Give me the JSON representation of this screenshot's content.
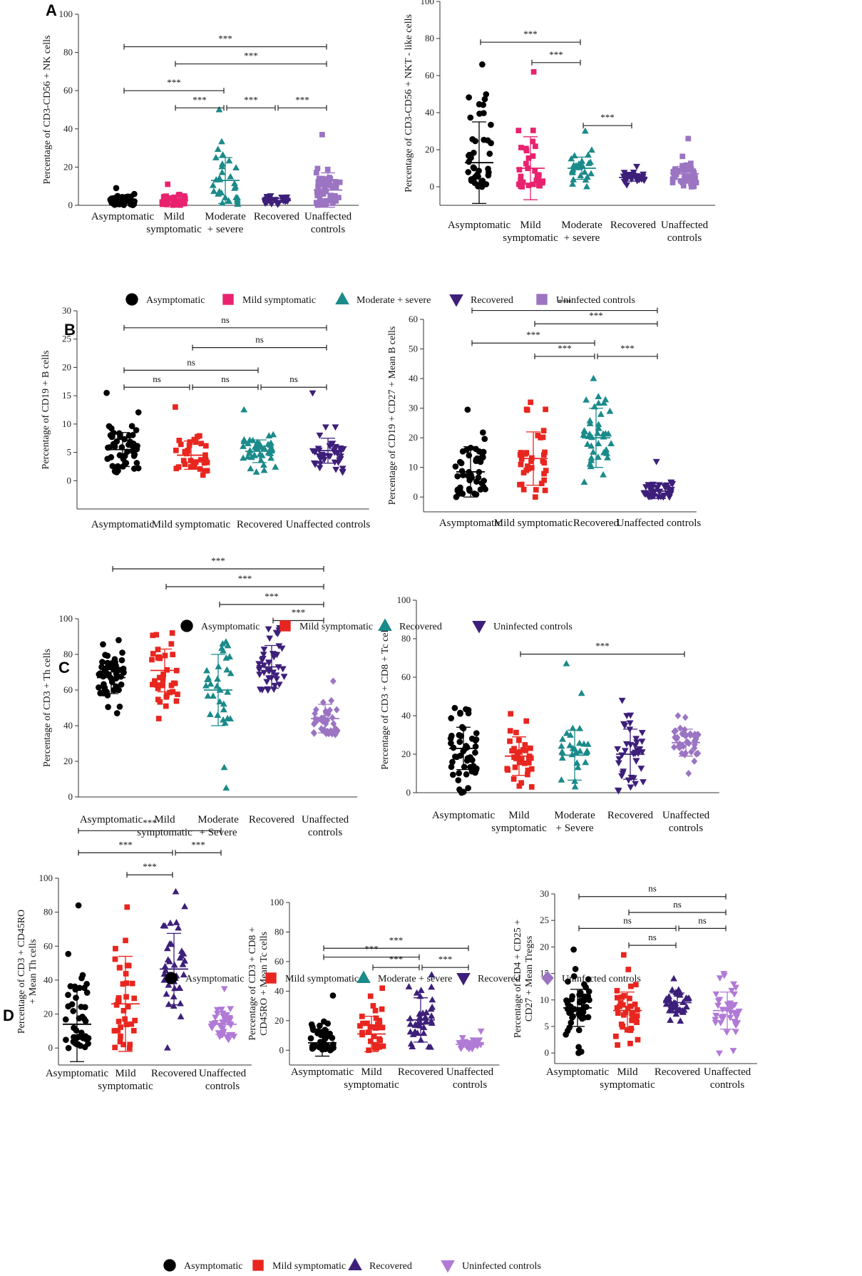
{
  "figure": {
    "panels": [
      {
        "letter": "A"
      },
      {
        "letter": "B"
      },
      {
        "letter": "C"
      },
      {
        "letter": "D"
      }
    ],
    "legends": [
      {
        "items": [
          {
            "label": "Asymptomatic",
            "marker": "circle",
            "color": "#000000"
          },
          {
            "label": "Mild symptomatic",
            "marker": "square",
            "color": "#e8226e"
          },
          {
            "label": "Moderate + severe",
            "marker": "triangle-up",
            "color": "#1b8a8a"
          },
          {
            "label": "Recovered",
            "marker": "triangle-down",
            "color": "#3d1f7a"
          },
          {
            "label": "Uninfected controls",
            "marker": "square",
            "color": "#9b74c2"
          }
        ]
      },
      {
        "items": [
          {
            "label": "Asymptomatic",
            "marker": "circle",
            "color": "#000000"
          },
          {
            "label": "Mild symptomatic",
            "marker": "square",
            "color": "#e8261f"
          },
          {
            "label": "Recovered",
            "marker": "triangle-up",
            "color": "#1b8a8a"
          },
          {
            "label": "Uninfected controls",
            "marker": "triangle-down",
            "color": "#3d1f7a"
          }
        ]
      },
      {
        "items": [
          {
            "label": "Asymptomatic",
            "marker": "circle",
            "color": "#000000"
          },
          {
            "label": "Mild symptomatic",
            "marker": "square",
            "color": "#e8261f"
          },
          {
            "label": "Moderate + severe",
            "marker": "triangle-up",
            "color": "#1b8a8a"
          },
          {
            "label": "Recovered",
            "marker": "triangle-down",
            "color": "#3d1f7a"
          },
          {
            "label": "Uninfected controls",
            "marker": "diamond",
            "color": "#9b74c2"
          }
        ]
      },
      {
        "items": [
          {
            "label": "Asymptomatic",
            "marker": "circle",
            "color": "#000000"
          },
          {
            "label": "Mild symptomatic",
            "marker": "square",
            "color": "#e8261f"
          },
          {
            "label": "Recovered",
            "marker": "triangle-up",
            "color": "#3d1f7a"
          },
          {
            "label": "Uninfected controls",
            "marker": "triangle-down",
            "color": "#b07ad6"
          }
        ]
      }
    ]
  },
  "chart_data": [
    {
      "id": "A1",
      "type": "scatter",
      "ylabel": "Percentage of  CD3-CD56 + NK cells",
      "ylim": [
        0,
        100
      ],
      "yticks": [
        0,
        20,
        40,
        60,
        80,
        100
      ],
      "categories": [
        "Asymptomatic",
        "Mild\nsymptomatic",
        "Moderate\n+ severe",
        "Recovered",
        "Unaffected\ncontrols"
      ],
      "groups": [
        {
          "n": 45,
          "mean": 2.0,
          "sd": 2.0,
          "min": 0.1,
          "max": 9.0,
          "marker": "circle",
          "color": "#000000"
        },
        {
          "n": 40,
          "mean": 2.5,
          "sd": 2.5,
          "min": 0.1,
          "max": 11.0,
          "marker": "square",
          "color": "#e8226e"
        },
        {
          "n": 30,
          "mean": 13.0,
          "sd": 12.0,
          "min": 0.5,
          "max": 50.0,
          "marker": "triangle-up",
          "color": "#1b8a8a"
        },
        {
          "n": 30,
          "mean": 2.5,
          "sd": 1.0,
          "min": 0.5,
          "max": 5.0,
          "marker": "triangle-down",
          "color": "#3d1f7a"
        },
        {
          "n": 50,
          "mean": 8.0,
          "sd": 9.0,
          "min": 0.1,
          "max": 37.0,
          "marker": "square",
          "color": "#9b74c2"
        }
      ],
      "sig": [
        {
          "from": 0,
          "to": 4,
          "y": 83,
          "label": "***"
        },
        {
          "from": 1,
          "to": 4,
          "y": 74,
          "label": "***"
        },
        {
          "from": 0,
          "to": 2,
          "y": 60,
          "label": "***"
        },
        {
          "from": 1,
          "to": 2,
          "y": 51,
          "label": "***"
        },
        {
          "from": 2,
          "to": 3,
          "y": 51,
          "label": "***"
        },
        {
          "from": 3,
          "to": 4,
          "y": 51,
          "label": "***"
        }
      ]
    },
    {
      "id": "A2",
      "type": "scatter",
      "ylabel": "Percentage of  CD3-CD56 + NKT - like cells",
      "ylim": [
        -10,
        100
      ],
      "yticks": [
        0,
        20,
        40,
        60,
        80,
        100
      ],
      "categories": [
        "Asymptomatic",
        "Mild\nsymptomatic",
        "Moderate\n+ severe",
        "Recovered",
        "Unaffected\ncontrols"
      ],
      "groups": [
        {
          "n": 40,
          "mean": 13.0,
          "sd": 22.0,
          "min": 0.0,
          "max": 66.0,
          "marker": "circle",
          "color": "#000000"
        },
        {
          "n": 32,
          "mean": 10.0,
          "sd": 17.0,
          "min": 0.0,
          "max": 62.0,
          "marker": "square",
          "color": "#e8226e"
        },
        {
          "n": 28,
          "mean": 10.0,
          "sd": 6.0,
          "min": 0.0,
          "max": 30.0,
          "marker": "triangle-up",
          "color": "#1b8a8a"
        },
        {
          "n": 30,
          "mean": 5.0,
          "sd": 2.0,
          "min": 1.0,
          "max": 11.0,
          "marker": "triangle-down",
          "color": "#3d1f7a"
        },
        {
          "n": 45,
          "mean": 7.0,
          "sd": 4.0,
          "min": 0.0,
          "max": 26.0,
          "marker": "square",
          "color": "#9b74c2"
        }
      ],
      "sig": [
        {
          "from": 0,
          "to": 2,
          "y": 78,
          "label": "***"
        },
        {
          "from": 1,
          "to": 2,
          "y": 67,
          "label": "***"
        },
        {
          "from": 2,
          "to": 3,
          "y": 33,
          "label": "***"
        }
      ]
    },
    {
      "id": "B1",
      "type": "scatter",
      "ylabel": "Percentage of  CD19 + B cells",
      "ylim": [
        -5,
        30
      ],
      "yticks": [
        0,
        5,
        10,
        15,
        20,
        25,
        30
      ],
      "categories": [
        "Asymptomatic",
        "Mild symptomatic",
        "Recovered",
        "Unaffected controls"
      ],
      "groups": [
        {
          "n": 50,
          "mean": 5.5,
          "sd": 3.0,
          "min": 1.5,
          "max": 15.5,
          "marker": "circle",
          "color": "#000000"
        },
        {
          "n": 35,
          "mean": 4.5,
          "sd": 2.5,
          "min": 1.0,
          "max": 13.0,
          "marker": "square",
          "color": "#e8261f"
        },
        {
          "n": 40,
          "mean": 5.2,
          "sd": 2.0,
          "min": 1.5,
          "max": 12.5,
          "marker": "triangle-up",
          "color": "#1b8a8a"
        },
        {
          "n": 45,
          "mean": 5.3,
          "sd": 2.2,
          "min": 1.5,
          "max": 15.5,
          "marker": "triangle-down",
          "color": "#3d1f7a"
        }
      ],
      "sig": [
        {
          "from": 0,
          "to": 3,
          "y": 27,
          "label": "ns"
        },
        {
          "from": 1,
          "to": 3,
          "y": 23.5,
          "label": "ns"
        },
        {
          "from": 0,
          "to": 2,
          "y": 19.5,
          "label": "ns"
        },
        {
          "from": 0,
          "to": 1,
          "y": 16.5,
          "label": "ns"
        },
        {
          "from": 1,
          "to": 2,
          "y": 16.5,
          "label": "ns"
        },
        {
          "from": 2,
          "to": 3,
          "y": 16.5,
          "label": "ns"
        }
      ]
    },
    {
      "id": "B2",
      "type": "scatter",
      "ylabel": "Percentage of CD19 + CD27 + Mean B cells",
      "ylim": [
        -5,
        60
      ],
      "yticks": [
        0,
        10,
        20,
        30,
        40,
        50,
        60
      ],
      "categories": [
        "Asymptomatic",
        "Mild symptomatic",
        "Recovered",
        "Unaffected controls"
      ],
      "groups": [
        {
          "n": 50,
          "mean": 8.5,
          "sd": 8.5,
          "min": 0.0,
          "max": 29.5,
          "marker": "circle",
          "color": "#000000"
        },
        {
          "n": 35,
          "mean": 13.0,
          "sd": 9.0,
          "min": 0.0,
          "max": 32.0,
          "marker": "square",
          "color": "#e8261f"
        },
        {
          "n": 40,
          "mean": 20.0,
          "sd": 10.0,
          "min": 5.0,
          "max": 40.0,
          "marker": "triangle-up",
          "color": "#1b8a8a"
        },
        {
          "n": 45,
          "mean": 2.0,
          "sd": 2.5,
          "min": 0.0,
          "max": 12.0,
          "marker": "triangle-down",
          "color": "#3d1f7a"
        }
      ],
      "sig": [
        {
          "from": 0,
          "to": 3,
          "y": 63,
          "label": "***"
        },
        {
          "from": 1,
          "to": 3,
          "y": 58.5,
          "label": "***"
        },
        {
          "from": 0,
          "to": 2,
          "y": 52,
          "label": "***"
        },
        {
          "from": 1,
          "to": 2,
          "y": 47.5,
          "label": "***"
        },
        {
          "from": 2,
          "to": 3,
          "y": 47.5,
          "label": "***"
        }
      ]
    },
    {
      "id": "C1",
      "type": "scatter",
      "ylabel": "Percentage of  CD3 +  Th cells",
      "ylim": [
        0,
        100
      ],
      "yticks": [
        0,
        20,
        40,
        60,
        80,
        100
      ],
      "categories": [
        "Asymptomatic",
        "Mild\nsymptomatic",
        "Moderate\n+ Severe",
        "Recovered",
        "Unaffected\ncontrols"
      ],
      "groups": [
        {
          "n": 50,
          "mean": 67.0,
          "sd": 9.0,
          "min": 47.0,
          "max": 88.0,
          "marker": "circle",
          "color": "#000000"
        },
        {
          "n": 38,
          "mean": 71.0,
          "sd": 12.0,
          "min": 44.0,
          "max": 92.0,
          "marker": "square",
          "color": "#e8261f"
        },
        {
          "n": 32,
          "mean": 60.0,
          "sd": 20.0,
          "min": 5.0,
          "max": 87.0,
          "marker": "triangle-up",
          "color": "#1b8a8a"
        },
        {
          "n": 42,
          "mean": 73.0,
          "sd": 12.0,
          "min": 60.0,
          "max": 95.0,
          "marker": "triangle-down",
          "color": "#3d1f7a"
        },
        {
          "n": 40,
          "mean": 44.0,
          "sd": 8.0,
          "min": 35.0,
          "max": 65.0,
          "marker": "diamond",
          "color": "#9b74c2"
        }
      ],
      "sig": [
        {
          "from": 0,
          "to": 4,
          "y": 128,
          "label": "***"
        },
        {
          "from": 1,
          "to": 4,
          "y": 118,
          "label": "***"
        },
        {
          "from": 2,
          "to": 4,
          "y": 108,
          "label": "***"
        },
        {
          "from": 3,
          "to": 4,
          "y": 99,
          "label": "***"
        }
      ]
    },
    {
      "id": "C2",
      "type": "scatter",
      "ylabel": "Percentage of  CD3 + CD8 + Tc cells",
      "ylim": [
        0,
        100
      ],
      "yticks": [
        0,
        20,
        40,
        60,
        80,
        100
      ],
      "categories": [
        "Asymptomatic",
        "Mild\nsymptomatic",
        "Moderate\n+ Severe",
        "Recovered",
        "Unaffected\ncontrols"
      ],
      "groups": [
        {
          "n": 50,
          "mean": 23.0,
          "sd": 11.0,
          "min": 0.0,
          "max": 44.0,
          "marker": "circle",
          "color": "#000000"
        },
        {
          "n": 35,
          "mean": 19.0,
          "sd": 10.0,
          "min": 3.0,
          "max": 41.0,
          "marker": "square",
          "color": "#e8261f"
        },
        {
          "n": 28,
          "mean": 19.5,
          "sd": 13.0,
          "min": 3.0,
          "max": 67.0,
          "marker": "triangle-up",
          "color": "#1b8a8a"
        },
        {
          "n": 40,
          "mean": 20.0,
          "sd": 13.0,
          "min": 1.0,
          "max": 48.0,
          "marker": "triangle-down",
          "color": "#3d1f7a"
        },
        {
          "n": 40,
          "mean": 26.0,
          "sd": 7.0,
          "min": 10.0,
          "max": 40.0,
          "marker": "diamond",
          "color": "#9b74c2"
        }
      ],
      "sig": [
        {
          "from": 1,
          "to": 4,
          "y": 72,
          "label": "***"
        }
      ]
    },
    {
      "id": "D1",
      "type": "scatter",
      "ylabel": "Percentage of CD3 + CD45RO\n+ Mean Th cells",
      "ylim": [
        -10,
        100
      ],
      "yticks": [
        0,
        20,
        40,
        60,
        80,
        100
      ],
      "categories": [
        "Asymptomatic",
        "Mild\nsymptomatic",
        "Recovered",
        "Unaffected\ncontrols"
      ],
      "groups": [
        {
          "n": 45,
          "mean": 14.0,
          "sd": 22.0,
          "min": 0.0,
          "max": 84.0,
          "marker": "circle",
          "color": "#000000"
        },
        {
          "n": 35,
          "mean": 26.0,
          "sd": 28.0,
          "min": 0.0,
          "max": 83.0,
          "marker": "square",
          "color": "#e8261f"
        },
        {
          "n": 40,
          "mean": 46.5,
          "sd": 21.0,
          "min": 0.0,
          "max": 92.0,
          "marker": "triangle-up",
          "color": "#3d1f7a"
        },
        {
          "n": 40,
          "mean": 14.0,
          "sd": 6.0,
          "min": 5.0,
          "max": 35.0,
          "marker": "triangle-down",
          "color": "#b07ad6"
        }
      ],
      "sig": [
        {
          "from": 0,
          "to": 3,
          "y": 128,
          "label": "***"
        },
        {
          "from": 0,
          "to": 2,
          "y": 115,
          "label": "***"
        },
        {
          "from": 2,
          "to": 3,
          "y": 115,
          "label": "***"
        },
        {
          "from": 1,
          "to": 2,
          "y": 102,
          "label": "***"
        }
      ]
    },
    {
      "id": "D2",
      "type": "scatter",
      "ylabel": "Percentage of CD3 + CD8 +\nCD45RO + Mean Tc cells",
      "ylim": [
        -10,
        100
      ],
      "yticks": [
        0,
        20,
        40,
        60,
        80,
        100
      ],
      "categories": [
        "Asymptomatic",
        "Mild\nsymptomatic",
        "Recovered",
        "Unaffected\ncontrols"
      ],
      "groups": [
        {
          "n": 45,
          "mean": 5.0,
          "sd": 9.0,
          "min": 0.0,
          "max": 37.0,
          "marker": "circle",
          "color": "#000000"
        },
        {
          "n": 35,
          "mean": 11.0,
          "sd": 12.0,
          "min": 0.0,
          "max": 42.0,
          "marker": "square",
          "color": "#e8261f"
        },
        {
          "n": 40,
          "mean": 20.5,
          "sd": 15.0,
          "min": 2.0,
          "max": 51.0,
          "marker": "triangle-up",
          "color": "#3d1f7a"
        },
        {
          "n": 30,
          "mean": 4.0,
          "sd": 2.0,
          "min": 1.0,
          "max": 13.0,
          "marker": "triangle-down",
          "color": "#b07ad6"
        }
      ],
      "sig": [
        {
          "from": 0,
          "to": 3,
          "y": 69,
          "label": "***"
        },
        {
          "from": 0,
          "to": 2,
          "y": 63,
          "label": "***"
        },
        {
          "from": 1,
          "to": 2,
          "y": 56,
          "label": "***"
        },
        {
          "from": 2,
          "to": 3,
          "y": 56,
          "label": "***"
        }
      ]
    },
    {
      "id": "D3",
      "type": "scatter",
      "ylabel": "Percentage of CD4 + CD25 +\nCD27 + Mean Tregss",
      "ylim": [
        -2,
        30
      ],
      "yticks": [
        0,
        5,
        10,
        15,
        20,
        25,
        30
      ],
      "categories": [
        "Asymptomatic",
        "Mild\nsymptomatic",
        "Recovered",
        "Unaffected\ncontrols"
      ],
      "groups": [
        {
          "n": 50,
          "mean": 8.5,
          "sd": 3.5,
          "min": 0.0,
          "max": 19.5,
          "marker": "circle",
          "color": "#000000"
        },
        {
          "n": 40,
          "mean": 8.0,
          "sd": 3.5,
          "min": 1.5,
          "max": 18.5,
          "marker": "square",
          "color": "#e8261f"
        },
        {
          "n": 40,
          "mean": 9.5,
          "sd": 1.8,
          "min": 6.0,
          "max": 14.0,
          "marker": "triangle-up",
          "color": "#3d1f7a"
        },
        {
          "n": 40,
          "mean": 8.0,
          "sd": 3.5,
          "min": 0.0,
          "max": 15.0,
          "marker": "triangle-down",
          "color": "#b07ad6"
        }
      ],
      "sig": [
        {
          "from": 0,
          "to": 3,
          "y": 29.5,
          "label": "ns"
        },
        {
          "from": 1,
          "to": 3,
          "y": 26.5,
          "label": "ns"
        },
        {
          "from": 0,
          "to": 2,
          "y": 23.5,
          "label": "ns"
        },
        {
          "from": 2,
          "to": 3,
          "y": 23.5,
          "label": "ns"
        },
        {
          "from": 1,
          "to": 2,
          "y": 20.3,
          "label": "ns"
        }
      ]
    }
  ]
}
